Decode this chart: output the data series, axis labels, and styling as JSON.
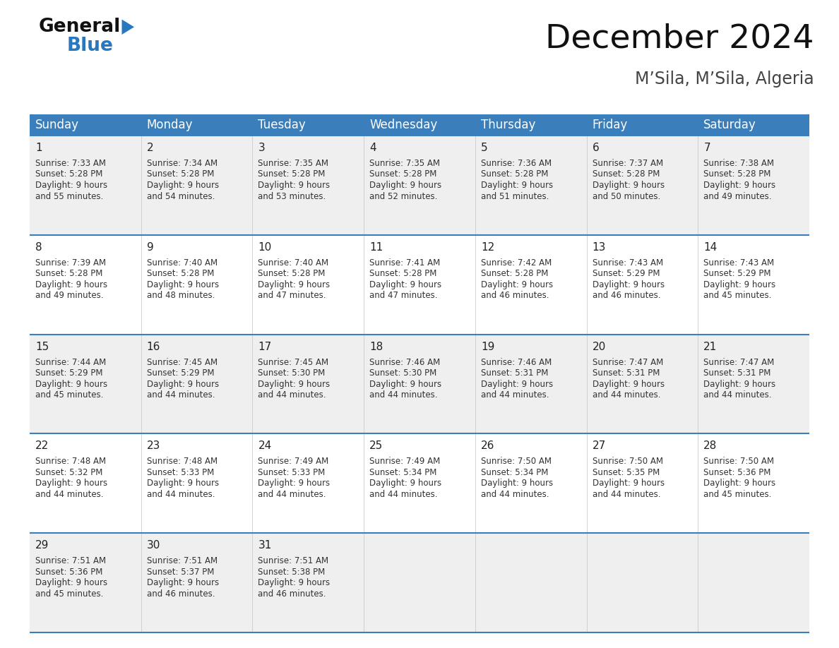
{
  "title": "December 2024",
  "subtitle": "M’Sila, M’Sila, Algeria",
  "header_bg": "#3a7fbc",
  "header_text_color": "#ffffff",
  "cell_bg_light": "#efefef",
  "cell_bg_white": "#ffffff",
  "row_bg_pattern": [
    1,
    0,
    1,
    0,
    1
  ],
  "day_headers": [
    "Sunday",
    "Monday",
    "Tuesday",
    "Wednesday",
    "Thursday",
    "Friday",
    "Saturday"
  ],
  "days": [
    {
      "day": 1,
      "col": 0,
      "row": 0,
      "sunrise": "7:33 AM",
      "sunset": "5:28 PM",
      "daylight": "9 hours and 55 minutes."
    },
    {
      "day": 2,
      "col": 1,
      "row": 0,
      "sunrise": "7:34 AM",
      "sunset": "5:28 PM",
      "daylight": "9 hours and 54 minutes."
    },
    {
      "day": 3,
      "col": 2,
      "row": 0,
      "sunrise": "7:35 AM",
      "sunset": "5:28 PM",
      "daylight": "9 hours and 53 minutes."
    },
    {
      "day": 4,
      "col": 3,
      "row": 0,
      "sunrise": "7:35 AM",
      "sunset": "5:28 PM",
      "daylight": "9 hours and 52 minutes."
    },
    {
      "day": 5,
      "col": 4,
      "row": 0,
      "sunrise": "7:36 AM",
      "sunset": "5:28 PM",
      "daylight": "9 hours and 51 minutes."
    },
    {
      "day": 6,
      "col": 5,
      "row": 0,
      "sunrise": "7:37 AM",
      "sunset": "5:28 PM",
      "daylight": "9 hours and 50 minutes."
    },
    {
      "day": 7,
      "col": 6,
      "row": 0,
      "sunrise": "7:38 AM",
      "sunset": "5:28 PM",
      "daylight": "9 hours and 49 minutes."
    },
    {
      "day": 8,
      "col": 0,
      "row": 1,
      "sunrise": "7:39 AM",
      "sunset": "5:28 PM",
      "daylight": "9 hours and 49 minutes."
    },
    {
      "day": 9,
      "col": 1,
      "row": 1,
      "sunrise": "7:40 AM",
      "sunset": "5:28 PM",
      "daylight": "9 hours and 48 minutes."
    },
    {
      "day": 10,
      "col": 2,
      "row": 1,
      "sunrise": "7:40 AM",
      "sunset": "5:28 PM",
      "daylight": "9 hours and 47 minutes."
    },
    {
      "day": 11,
      "col": 3,
      "row": 1,
      "sunrise": "7:41 AM",
      "sunset": "5:28 PM",
      "daylight": "9 hours and 47 minutes."
    },
    {
      "day": 12,
      "col": 4,
      "row": 1,
      "sunrise": "7:42 AM",
      "sunset": "5:28 PM",
      "daylight": "9 hours and 46 minutes."
    },
    {
      "day": 13,
      "col": 5,
      "row": 1,
      "sunrise": "7:43 AM",
      "sunset": "5:29 PM",
      "daylight": "9 hours and 46 minutes."
    },
    {
      "day": 14,
      "col": 6,
      "row": 1,
      "sunrise": "7:43 AM",
      "sunset": "5:29 PM",
      "daylight": "9 hours and 45 minutes."
    },
    {
      "day": 15,
      "col": 0,
      "row": 2,
      "sunrise": "7:44 AM",
      "sunset": "5:29 PM",
      "daylight": "9 hours and 45 minutes."
    },
    {
      "day": 16,
      "col": 1,
      "row": 2,
      "sunrise": "7:45 AM",
      "sunset": "5:29 PM",
      "daylight": "9 hours and 44 minutes."
    },
    {
      "day": 17,
      "col": 2,
      "row": 2,
      "sunrise": "7:45 AM",
      "sunset": "5:30 PM",
      "daylight": "9 hours and 44 minutes."
    },
    {
      "day": 18,
      "col": 3,
      "row": 2,
      "sunrise": "7:46 AM",
      "sunset": "5:30 PM",
      "daylight": "9 hours and 44 minutes."
    },
    {
      "day": 19,
      "col": 4,
      "row": 2,
      "sunrise": "7:46 AM",
      "sunset": "5:31 PM",
      "daylight": "9 hours and 44 minutes."
    },
    {
      "day": 20,
      "col": 5,
      "row": 2,
      "sunrise": "7:47 AM",
      "sunset": "5:31 PM",
      "daylight": "9 hours and 44 minutes."
    },
    {
      "day": 21,
      "col": 6,
      "row": 2,
      "sunrise": "7:47 AM",
      "sunset": "5:31 PM",
      "daylight": "9 hours and 44 minutes."
    },
    {
      "day": 22,
      "col": 0,
      "row": 3,
      "sunrise": "7:48 AM",
      "sunset": "5:32 PM",
      "daylight": "9 hours and 44 minutes."
    },
    {
      "day": 23,
      "col": 1,
      "row": 3,
      "sunrise": "7:48 AM",
      "sunset": "5:33 PM",
      "daylight": "9 hours and 44 minutes."
    },
    {
      "day": 24,
      "col": 2,
      "row": 3,
      "sunrise": "7:49 AM",
      "sunset": "5:33 PM",
      "daylight": "9 hours and 44 minutes."
    },
    {
      "day": 25,
      "col": 3,
      "row": 3,
      "sunrise": "7:49 AM",
      "sunset": "5:34 PM",
      "daylight": "9 hours and 44 minutes."
    },
    {
      "day": 26,
      "col": 4,
      "row": 3,
      "sunrise": "7:50 AM",
      "sunset": "5:34 PM",
      "daylight": "9 hours and 44 minutes."
    },
    {
      "day": 27,
      "col": 5,
      "row": 3,
      "sunrise": "7:50 AM",
      "sunset": "5:35 PM",
      "daylight": "9 hours and 44 minutes."
    },
    {
      "day": 28,
      "col": 6,
      "row": 3,
      "sunrise": "7:50 AM",
      "sunset": "5:36 PM",
      "daylight": "9 hours and 45 minutes."
    },
    {
      "day": 29,
      "col": 0,
      "row": 4,
      "sunrise": "7:51 AM",
      "sunset": "5:36 PM",
      "daylight": "9 hours and 45 minutes."
    },
    {
      "day": 30,
      "col": 1,
      "row": 4,
      "sunrise": "7:51 AM",
      "sunset": "5:37 PM",
      "daylight": "9 hours and 46 minutes."
    },
    {
      "day": 31,
      "col": 2,
      "row": 4,
      "sunrise": "7:51 AM",
      "sunset": "5:38 PM",
      "daylight": "9 hours and 46 minutes."
    }
  ],
  "logo_general_color": "#111111",
  "logo_blue_color": "#2878c0",
  "logo_triangle_color": "#2878c0",
  "border_color": "#3a7fbc",
  "num_rows": 5,
  "num_cols": 7,
  "fig_width": 11.88,
  "fig_height": 9.18,
  "title_fontsize": 34,
  "subtitle_fontsize": 17,
  "header_fontsize": 12,
  "daynum_fontsize": 11,
  "cell_text_fontsize": 8.5
}
